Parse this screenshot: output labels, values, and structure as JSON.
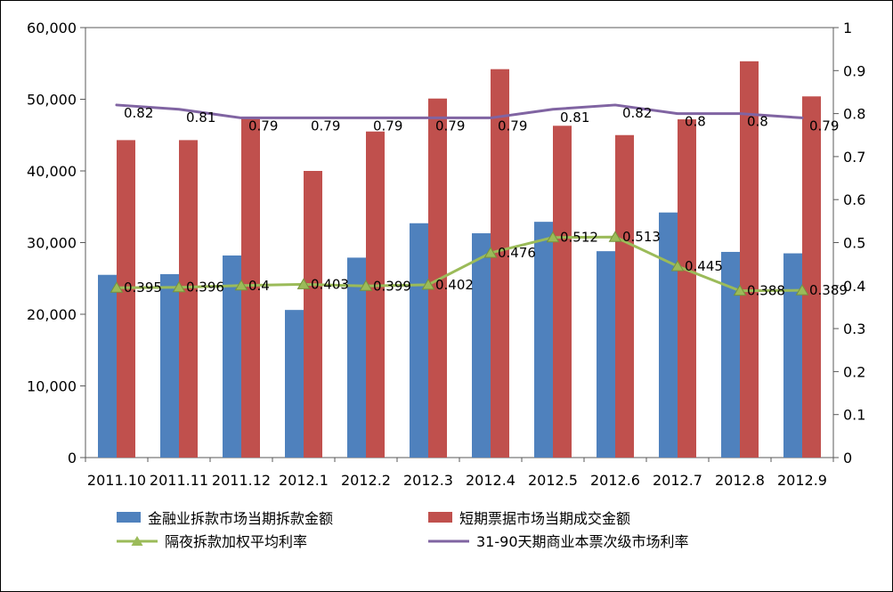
{
  "chart_data": {
    "type": "bar",
    "subtype": "combo-bar-line-dual-axis",
    "title": "",
    "grid": "off",
    "legend_position": "bottom",
    "categories": [
      "2011.10",
      "2011.11",
      "2011.12",
      "2012.1",
      "2012.2",
      "2012.3",
      "2012.4",
      "2012.5",
      "2012.6",
      "2012.7",
      "2012.8",
      "2012.9"
    ],
    "series": [
      {
        "name": "金融业拆款市场当期拆款金额",
        "type": "bar",
        "axis": "left",
        "color": "#4F81BD",
        "values": [
          25500,
          25600,
          28200,
          20600,
          27900,
          32700,
          31300,
          32900,
          28800,
          34200,
          28700,
          28500
        ]
      },
      {
        "name": "短期票据市场当期成交金额",
        "type": "bar",
        "axis": "left",
        "color": "#C0504D",
        "values": [
          44300,
          44300,
          47300,
          40000,
          45500,
          50100,
          54200,
          46300,
          45000,
          47200,
          55300,
          50400
        ]
      },
      {
        "name": "隔夜拆款加权平均利率",
        "type": "line",
        "marker": "triangle",
        "axis": "right",
        "color": "#9BBB59",
        "values": [
          0.395,
          0.396,
          0.4,
          0.403,
          0.399,
          0.402,
          0.476,
          0.512,
          0.513,
          0.445,
          0.388,
          0.389
        ],
        "labels": [
          "0.395",
          "0.396",
          "0.4",
          "0.403",
          "0.399",
          "0.402",
          "0.476",
          "0.512",
          "0.513",
          "0.445",
          "0.388",
          "0.389"
        ]
      },
      {
        "name": "31-90天期商业本票次级市场利率",
        "type": "line",
        "marker": "none",
        "axis": "right",
        "color": "#8064A2",
        "values": [
          0.82,
          0.81,
          0.79,
          0.79,
          0.79,
          0.79,
          0.79,
          0.81,
          0.82,
          0.8,
          0.8,
          0.79
        ],
        "labels": [
          "0.82",
          "0.81",
          "0.79",
          "0.79",
          "0.79",
          "0.79",
          "0.79",
          "0.81",
          "0.82",
          "0.8",
          "0.8",
          "0.79"
        ]
      }
    ],
    "left_axis": {
      "min": 0,
      "max": 60000,
      "step": 10000,
      "tick_labels": [
        "0",
        "10,000",
        "20,000",
        "30,000",
        "40,000",
        "50,000",
        "60,000"
      ]
    },
    "right_axis": {
      "min": 0,
      "max": 1,
      "step": 0.1,
      "tick_labels": [
        "0",
        "0.1",
        "0.2",
        "0.3",
        "0.4",
        "0.5",
        "0.6",
        "0.7",
        "0.8",
        "0.9",
        "1"
      ]
    }
  }
}
